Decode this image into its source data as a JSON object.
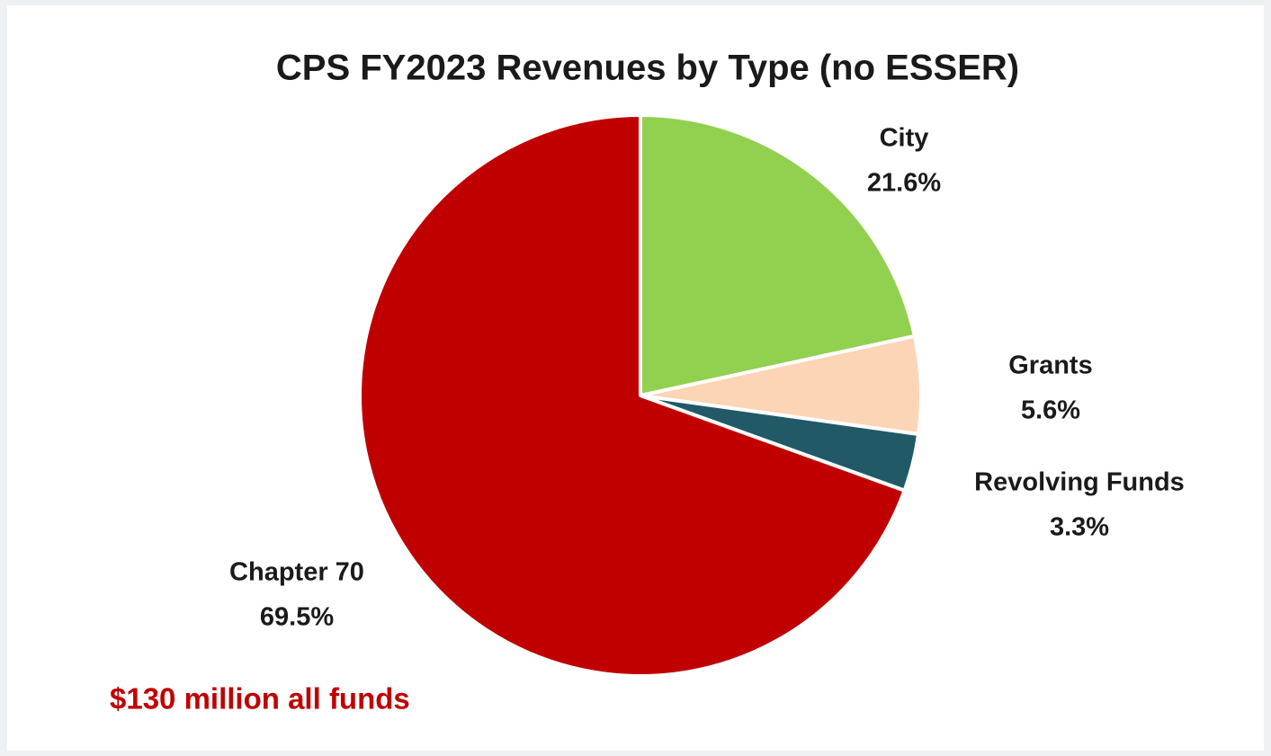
{
  "chart_data": {
    "type": "pie",
    "title": "CPS FY2023 Revenues by Type (no ESSER)",
    "categories": [
      "City",
      "Grants",
      "Revolving Funds",
      "Chapter 70"
    ],
    "values": [
      21.6,
      5.6,
      3.3,
      69.5
    ],
    "value_labels": [
      "21.6%",
      "5.6%",
      "3.3%",
      "69.5%"
    ],
    "colors": [
      "#92d050",
      "#fbd5b5",
      "#215967",
      "#c00000"
    ],
    "annotation": "$130 million all funds"
  }
}
